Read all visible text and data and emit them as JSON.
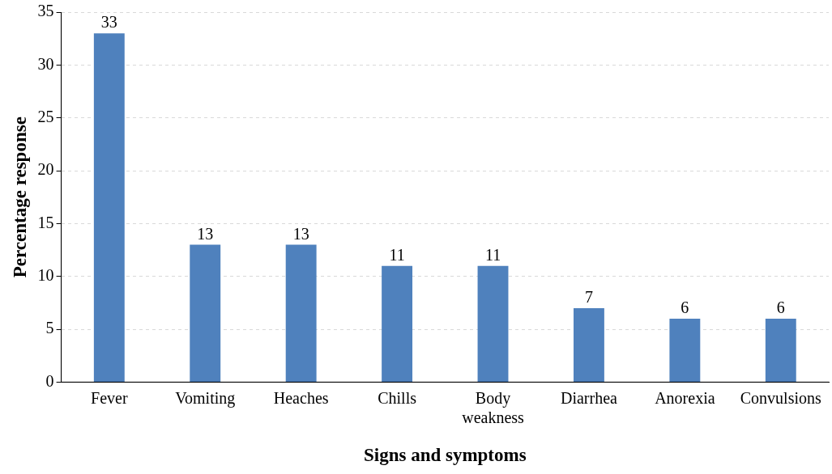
{
  "chart_data": {
    "type": "bar",
    "xlabel": "Signs and symptoms",
    "ylabel": "Percentage response",
    "categories": [
      "Fever",
      "Vomiting",
      "Heaches",
      "Chills",
      "Body weakness",
      "Diarrhea",
      "Anorexia",
      "Convulsions"
    ],
    "values": [
      33,
      13,
      13,
      11,
      11,
      7,
      6,
      6
    ],
    "color": "#4f81bd",
    "ylim": [
      0,
      35
    ],
    "yticks": [
      0,
      5,
      10,
      15,
      20,
      25,
      30,
      35
    ],
    "grid": "y",
    "data_labels": true,
    "legend": false
  }
}
